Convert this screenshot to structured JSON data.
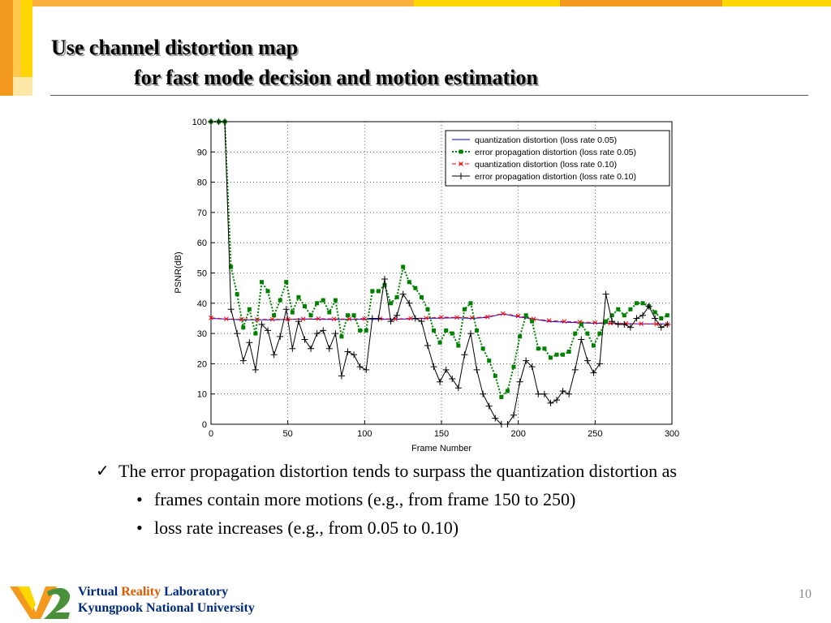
{
  "slide": {
    "title_line1": "Use channel distortion map",
    "title_line2": "for fast mode decision and motion estimation",
    "bullet_main": "The error propagation distortion tends to surpass the quantization distortion as",
    "sub_bullets": [
      "frames contain more motions (e.g., from frame 150 to 250)",
      "loss rate increases (e.g., from 0.05 to 0.10)"
    ],
    "footer": {
      "lab_word1": "Virtual",
      "lab_word2": "Reality",
      "lab_word3": "Laboratory",
      "university": "Kyungpook National University"
    },
    "page_number": "10"
  },
  "icons": {
    "bullet": "check-icon",
    "logo": "vr-lab-logo"
  },
  "colors": {
    "stripe_orange": "#f39a1e",
    "stripe_yellow": "#ffd700",
    "title_shadow": "#9a9a9a",
    "lab_blue": "#002a7a",
    "lab_orange": "#e05a00"
  },
  "chart_data": {
    "type": "line",
    "title": "",
    "xlabel": "Frame Number",
    "ylabel": "PSNR(dB)",
    "xlim": [
      0,
      300
    ],
    "ylim": [
      0,
      100
    ],
    "xticks": [
      0,
      50,
      100,
      150,
      200,
      250,
      300
    ],
    "yticks": [
      0,
      10,
      20,
      30,
      40,
      50,
      60,
      70,
      80,
      90,
      100
    ],
    "grid": true,
    "legend_position": "top-right",
    "series": [
      {
        "name": "quantization distortion (loss rate 0.05)",
        "color": "#0000ff",
        "dash": "solid",
        "marker": "none",
        "x": [
          0,
          20,
          40,
          60,
          80,
          100,
          120,
          140,
          160,
          170,
          180,
          190,
          200,
          210,
          220,
          240,
          260,
          280,
          295
        ],
        "y": [
          35,
          34.5,
          34.5,
          34.8,
          34.6,
          34.7,
          34.7,
          35,
          35.2,
          35,
          35.3,
          36.5,
          35.5,
          34.8,
          34,
          33.5,
          33.3,
          33.2,
          33.2
        ]
      },
      {
        "name": "error propagation distortion (loss rate 0.05)",
        "color": "#008000",
        "dash": "dotted",
        "marker": "square",
        "x": [
          0,
          5,
          9,
          13,
          17,
          21,
          25,
          29,
          33,
          37,
          41,
          45,
          49,
          53,
          57,
          61,
          65,
          69,
          73,
          77,
          81,
          85,
          89,
          93,
          97,
          101,
          105,
          109,
          113,
          117,
          121,
          125,
          129,
          133,
          137,
          141,
          145,
          149,
          153,
          157,
          161,
          165,
          169,
          173,
          177,
          181,
          185,
          189,
          193,
          197,
          201,
          205,
          209,
          213,
          217,
          221,
          225,
          229,
          233,
          237,
          241,
          245,
          249,
          253,
          257,
          261,
          265,
          269,
          273,
          277,
          281,
          285,
          289,
          293,
          297
        ],
        "y": [
          100,
          100,
          100,
          52,
          43,
          32,
          38,
          30,
          47,
          44,
          36,
          41,
          47,
          37,
          42,
          39,
          36,
          40,
          41,
          37,
          41,
          29,
          36,
          36,
          31,
          31,
          44,
          44,
          46,
          40,
          42,
          52,
          47,
          45,
          42,
          38,
          31,
          27,
          31,
          30,
          26,
          38,
          40,
          31,
          25,
          21,
          16,
          9,
          11,
          19,
          29,
          36,
          34,
          25,
          25,
          22,
          23,
          23,
          24,
          30,
          33,
          30,
          26,
          30,
          34,
          36,
          38,
          36,
          38,
          40,
          40,
          39,
          37,
          35,
          36
        ]
      },
      {
        "name": "quantization distortion (loss rate 0.10)",
        "color": "#ff0000",
        "dash": "dashed",
        "marker": "x",
        "x": [
          0,
          10,
          20,
          30,
          40,
          50,
          60,
          70,
          80,
          90,
          100,
          110,
          120,
          130,
          140,
          150,
          160,
          170,
          180,
          190,
          200,
          210,
          220,
          230,
          240,
          250,
          260,
          270,
          280,
          290,
          297
        ],
        "y": [
          35.2,
          34.8,
          34.7,
          34.6,
          34.7,
          34.7,
          34.8,
          34.9,
          34.8,
          34.8,
          34.9,
          34.9,
          34.8,
          35,
          35.1,
          35.4,
          35.3,
          35.2,
          35.5,
          36.6,
          35.8,
          34.8,
          34.3,
          34,
          33.8,
          33.6,
          33.4,
          33.3,
          33.2,
          33.1,
          33
        ]
      },
      {
        "name": "error propagation distortion (loss rate 0.10)",
        "color": "#000000",
        "dash": "solid",
        "marker": "plus",
        "x": [
          0,
          5,
          9,
          13,
          17,
          21,
          25,
          29,
          33,
          37,
          41,
          45,
          49,
          53,
          57,
          61,
          65,
          69,
          73,
          77,
          81,
          85,
          89,
          93,
          97,
          101,
          105,
          109,
          113,
          117,
          121,
          125,
          129,
          133,
          137,
          141,
          145,
          149,
          153,
          157,
          161,
          165,
          169,
          173,
          177,
          181,
          185,
          189,
          193,
          197,
          201,
          205,
          209,
          213,
          217,
          221,
          225,
          229,
          233,
          237,
          241,
          245,
          249,
          253,
          257,
          261,
          265,
          269,
          273,
          277,
          281,
          285,
          289,
          293,
          297
        ],
        "y": [
          100,
          100,
          100,
          38,
          30,
          21,
          27,
          18,
          33,
          31,
          23,
          29,
          38,
          25,
          34,
          28,
          25,
          30,
          31,
          25,
          30,
          16,
          24,
          23,
          19,
          18,
          35,
          35,
          48,
          34,
          36,
          43,
          40,
          35,
          34,
          26,
          19,
          14,
          18,
          15,
          12,
          23,
          30,
          18,
          10,
          6,
          2,
          0,
          0,
          3,
          14,
          21,
          19,
          10,
          10,
          7,
          8,
          11,
          10,
          18,
          28,
          21,
          17,
          20,
          43,
          34,
          33,
          33,
          32,
          35,
          36,
          39,
          35,
          32,
          33
        ]
      }
    ]
  }
}
